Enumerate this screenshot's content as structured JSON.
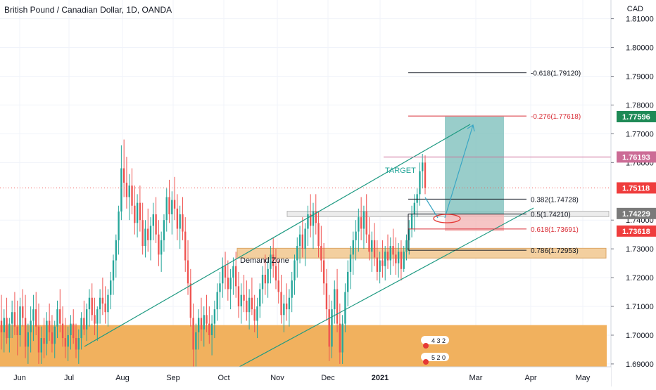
{
  "header": {
    "title": "British Pound / Canadian Dollar, 1D, OANDA",
    "currency": "CAD"
  },
  "chart_data": {
    "type": "candlestick",
    "ylim": [
      1.689,
      1.8165
    ],
    "y_ticks": [
      "1.81000",
      "1.80000",
      "1.79000",
      "1.78000",
      "1.77000",
      "1.76000",
      "1.74000",
      "1.73000",
      "1.72000",
      "1.71000",
      "1.70000",
      "1.69000"
    ],
    "x_tick_labels": [
      "Jun",
      "Jul",
      "Aug",
      "Sep",
      "Oct",
      "Nov",
      "Dec",
      "2021",
      "Mar",
      "Apr",
      "May"
    ],
    "price_tags": [
      {
        "label": "1.77596",
        "value": 1.77596,
        "color": "#1e8a56"
      },
      {
        "label": "1.76193",
        "value": 1.76193,
        "color": "#cc6c96"
      },
      {
        "label": "1.75118",
        "value": 1.75118,
        "color": "#ef3d3d"
      },
      {
        "label": "1.74229",
        "value": 1.74229,
        "color": "#7a7a7a"
      },
      {
        "label": "1.73618",
        "value": 1.73618,
        "color": "#ef3d3d"
      }
    ],
    "fib_levels": [
      {
        "label": "-0.618(1.79120)",
        "value": 1.7912,
        "color": "#131722"
      },
      {
        "label": "-0.276(1.77618)",
        "value": 1.77618,
        "color": "#d9313a"
      },
      {
        "label": "0.382(1.74728)",
        "value": 1.74728,
        "color": "#131722"
      },
      {
        "label": "0.5(1.74210)",
        "value": 1.7421,
        "color": "#131722"
      },
      {
        "label": "0.618(1.73691)",
        "value": 1.73691,
        "color": "#d9313a"
      },
      {
        "label": "0.786(1.72953)",
        "value": 1.72953,
        "color": "#131722"
      }
    ],
    "annotations": {
      "demand_zone": "Demand Zone",
      "target": "TARGET",
      "small_badges": [
        "4 3 2",
        "5 2 0"
      ]
    },
    "zones": [
      {
        "name": "big-support",
        "y_from": 1.689,
        "y_to": 1.7035
      },
      {
        "name": "demand",
        "y_from": 1.7268,
        "y_to": 1.7302
      },
      {
        "name": "retest",
        "y_from": 1.7412,
        "y_to": 1.7431
      }
    ],
    "channel": {
      "upper": [
        [
          1.6972,
          1.7755
        ]
      ],
      "lower": [
        [
          1.689,
          1.7447
        ]
      ]
    },
    "position": {
      "entry": 1.7421,
      "target": 1.77596,
      "stop": 1.73618
    },
    "last_price": 1.75118,
    "series_colors": {
      "up": "#26a69a",
      "down": "#ef5350"
    },
    "candles": [
      {
        "o": 1.705,
        "h": 1.714,
        "l": 1.695,
        "c": 1.701
      },
      {
        "o": 1.701,
        "h": 1.709,
        "l": 1.694,
        "c": 1.706
      },
      {
        "o": 1.706,
        "h": 1.713,
        "l": 1.697,
        "c": 1.699
      },
      {
        "o": 1.699,
        "h": 1.706,
        "l": 1.694,
        "c": 1.704
      },
      {
        "o": 1.704,
        "h": 1.712,
        "l": 1.699,
        "c": 1.708
      },
      {
        "o": 1.708,
        "h": 1.715,
        "l": 1.7,
        "c": 1.703
      },
      {
        "o": 1.703,
        "h": 1.712,
        "l": 1.693,
        "c": 1.7
      },
      {
        "o": 1.7,
        "h": 1.713,
        "l": 1.696,
        "c": 1.71
      },
      {
        "o": 1.71,
        "h": 1.716,
        "l": 1.703,
        "c": 1.706
      },
      {
        "o": 1.706,
        "h": 1.714,
        "l": 1.692,
        "c": 1.696
      },
      {
        "o": 1.696,
        "h": 1.704,
        "l": 1.69,
        "c": 1.701
      },
      {
        "o": 1.701,
        "h": 1.71,
        "l": 1.694,
        "c": 1.705
      },
      {
        "o": 1.705,
        "h": 1.714,
        "l": 1.698,
        "c": 1.709
      },
      {
        "o": 1.709,
        "h": 1.715,
        "l": 1.7,
        "c": 1.703
      },
      {
        "o": 1.703,
        "h": 1.711,
        "l": 1.69,
        "c": 1.694
      },
      {
        "o": 1.694,
        "h": 1.703,
        "l": 1.69,
        "c": 1.699
      },
      {
        "o": 1.699,
        "h": 1.706,
        "l": 1.692,
        "c": 1.697
      },
      {
        "o": 1.697,
        "h": 1.708,
        "l": 1.693,
        "c": 1.705
      },
      {
        "o": 1.705,
        "h": 1.711,
        "l": 1.698,
        "c": 1.701
      },
      {
        "o": 1.701,
        "h": 1.707,
        "l": 1.694,
        "c": 1.697
      },
      {
        "o": 1.697,
        "h": 1.705,
        "l": 1.692,
        "c": 1.703
      },
      {
        "o": 1.703,
        "h": 1.712,
        "l": 1.699,
        "c": 1.709
      },
      {
        "o": 1.709,
        "h": 1.716,
        "l": 1.701,
        "c": 1.704
      },
      {
        "o": 1.704,
        "h": 1.71,
        "l": 1.696,
        "c": 1.699
      },
      {
        "o": 1.699,
        "h": 1.706,
        "l": 1.692,
        "c": 1.696
      },
      {
        "o": 1.696,
        "h": 1.703,
        "l": 1.691,
        "c": 1.7
      },
      {
        "o": 1.7,
        "h": 1.707,
        "l": 1.695,
        "c": 1.704
      },
      {
        "o": 1.704,
        "h": 1.709,
        "l": 1.697,
        "c": 1.699
      },
      {
        "o": 1.699,
        "h": 1.704,
        "l": 1.692,
        "c": 1.695
      },
      {
        "o": 1.695,
        "h": 1.702,
        "l": 1.69,
        "c": 1.699
      },
      {
        "o": 1.699,
        "h": 1.708,
        "l": 1.695,
        "c": 1.706
      },
      {
        "o": 1.706,
        "h": 1.712,
        "l": 1.7,
        "c": 1.702
      },
      {
        "o": 1.702,
        "h": 1.711,
        "l": 1.698,
        "c": 1.709
      },
      {
        "o": 1.709,
        "h": 1.716,
        "l": 1.703,
        "c": 1.713
      },
      {
        "o": 1.713,
        "h": 1.718,
        "l": 1.705,
        "c": 1.707
      },
      {
        "o": 1.707,
        "h": 1.713,
        "l": 1.7,
        "c": 1.704
      },
      {
        "o": 1.704,
        "h": 1.71,
        "l": 1.698,
        "c": 1.709
      },
      {
        "o": 1.709,
        "h": 1.716,
        "l": 1.704,
        "c": 1.713
      },
      {
        "o": 1.713,
        "h": 1.72,
        "l": 1.707,
        "c": 1.711
      },
      {
        "o": 1.711,
        "h": 1.717,
        "l": 1.704,
        "c": 1.708
      },
      {
        "o": 1.708,
        "h": 1.716,
        "l": 1.703,
        "c": 1.714
      },
      {
        "o": 1.714,
        "h": 1.722,
        "l": 1.709,
        "c": 1.719
      },
      {
        "o": 1.719,
        "h": 1.728,
        "l": 1.714,
        "c": 1.726
      },
      {
        "o": 1.726,
        "h": 1.735,
        "l": 1.72,
        "c": 1.733
      },
      {
        "o": 1.733,
        "h": 1.745,
        "l": 1.728,
        "c": 1.743
      },
      {
        "o": 1.743,
        "h": 1.766,
        "l": 1.74,
        "c": 1.758
      },
      {
        "o": 1.758,
        "h": 1.768,
        "l": 1.748,
        "c": 1.753
      },
      {
        "o": 1.753,
        "h": 1.762,
        "l": 1.744,
        "c": 1.748
      },
      {
        "o": 1.748,
        "h": 1.756,
        "l": 1.74,
        "c": 1.752
      },
      {
        "o": 1.752,
        "h": 1.758,
        "l": 1.742,
        "c": 1.745
      },
      {
        "o": 1.745,
        "h": 1.752,
        "l": 1.735,
        "c": 1.739
      },
      {
        "o": 1.739,
        "h": 1.749,
        "l": 1.734,
        "c": 1.746
      },
      {
        "o": 1.746,
        "h": 1.752,
        "l": 1.736,
        "c": 1.74
      },
      {
        "o": 1.74,
        "h": 1.746,
        "l": 1.728,
        "c": 1.731
      },
      {
        "o": 1.731,
        "h": 1.74,
        "l": 1.727,
        "c": 1.737
      },
      {
        "o": 1.737,
        "h": 1.744,
        "l": 1.729,
        "c": 1.733
      },
      {
        "o": 1.733,
        "h": 1.741,
        "l": 1.726,
        "c": 1.738
      },
      {
        "o": 1.738,
        "h": 1.746,
        "l": 1.733,
        "c": 1.742
      },
      {
        "o": 1.742,
        "h": 1.748,
        "l": 1.732,
        "c": 1.735
      },
      {
        "o": 1.735,
        "h": 1.74,
        "l": 1.724,
        "c": 1.728
      },
      {
        "o": 1.728,
        "h": 1.736,
        "l": 1.722,
        "c": 1.733
      },
      {
        "o": 1.733,
        "h": 1.742,
        "l": 1.729,
        "c": 1.74
      },
      {
        "o": 1.74,
        "h": 1.751,
        "l": 1.736,
        "c": 1.748
      },
      {
        "o": 1.748,
        "h": 1.754,
        "l": 1.739,
        "c": 1.742
      },
      {
        "o": 1.742,
        "h": 1.75,
        "l": 1.735,
        "c": 1.747
      },
      {
        "o": 1.747,
        "h": 1.755,
        "l": 1.74,
        "c": 1.744
      },
      {
        "o": 1.744,
        "h": 1.749,
        "l": 1.733,
        "c": 1.737
      },
      {
        "o": 1.737,
        "h": 1.745,
        "l": 1.73,
        "c": 1.742
      },
      {
        "o": 1.742,
        "h": 1.748,
        "l": 1.733,
        "c": 1.736
      },
      {
        "o": 1.736,
        "h": 1.741,
        "l": 1.722,
        "c": 1.726
      },
      {
        "o": 1.726,
        "h": 1.733,
        "l": 1.714,
        "c": 1.718
      },
      {
        "o": 1.718,
        "h": 1.723,
        "l": 1.703,
        "c": 1.706
      },
      {
        "o": 1.706,
        "h": 1.711,
        "l": 1.689,
        "c": 1.695
      },
      {
        "o": 1.695,
        "h": 1.704,
        "l": 1.689,
        "c": 1.701
      },
      {
        "o": 1.701,
        "h": 1.709,
        "l": 1.695,
        "c": 1.706
      },
      {
        "o": 1.706,
        "h": 1.713,
        "l": 1.698,
        "c": 1.702
      },
      {
        "o": 1.702,
        "h": 1.71,
        "l": 1.696,
        "c": 1.707
      },
      {
        "o": 1.707,
        "h": 1.714,
        "l": 1.701,
        "c": 1.704
      },
      {
        "o": 1.704,
        "h": 1.71,
        "l": 1.697,
        "c": 1.7
      },
      {
        "o": 1.7,
        "h": 1.707,
        "l": 1.693,
        "c": 1.704
      },
      {
        "o": 1.704,
        "h": 1.712,
        "l": 1.699,
        "c": 1.709
      },
      {
        "o": 1.709,
        "h": 1.718,
        "l": 1.705,
        "c": 1.715
      },
      {
        "o": 1.715,
        "h": 1.722,
        "l": 1.709,
        "c": 1.718
      },
      {
        "o": 1.718,
        "h": 1.727,
        "l": 1.713,
        "c": 1.724
      },
      {
        "o": 1.724,
        "h": 1.729,
        "l": 1.716,
        "c": 1.72
      },
      {
        "o": 1.72,
        "h": 1.726,
        "l": 1.712,
        "c": 1.716
      },
      {
        "o": 1.716,
        "h": 1.723,
        "l": 1.709,
        "c": 1.72
      },
      {
        "o": 1.72,
        "h": 1.727,
        "l": 1.714,
        "c": 1.724
      },
      {
        "o": 1.724,
        "h": 1.729,
        "l": 1.713,
        "c": 1.717
      },
      {
        "o": 1.717,
        "h": 1.722,
        "l": 1.706,
        "c": 1.71
      },
      {
        "o": 1.71,
        "h": 1.718,
        "l": 1.704,
        "c": 1.714
      },
      {
        "o": 1.714,
        "h": 1.721,
        "l": 1.708,
        "c": 1.712
      },
      {
        "o": 1.712,
        "h": 1.719,
        "l": 1.705,
        "c": 1.708
      },
      {
        "o": 1.708,
        "h": 1.716,
        "l": 1.702,
        "c": 1.713
      },
      {
        "o": 1.713,
        "h": 1.72,
        "l": 1.707,
        "c": 1.709
      },
      {
        "o": 1.709,
        "h": 1.714,
        "l": 1.701,
        "c": 1.705
      },
      {
        "o": 1.705,
        "h": 1.713,
        "l": 1.699,
        "c": 1.71
      },
      {
        "o": 1.71,
        "h": 1.718,
        "l": 1.706,
        "c": 1.716
      },
      {
        "o": 1.716,
        "h": 1.724,
        "l": 1.711,
        "c": 1.721
      },
      {
        "o": 1.721,
        "h": 1.728,
        "l": 1.714,
        "c": 1.718
      },
      {
        "o": 1.718,
        "h": 1.726,
        "l": 1.713,
        "c": 1.723
      },
      {
        "o": 1.723,
        "h": 1.731,
        "l": 1.718,
        "c": 1.728
      },
      {
        "o": 1.728,
        "h": 1.734,
        "l": 1.72,
        "c": 1.724
      },
      {
        "o": 1.724,
        "h": 1.73,
        "l": 1.716,
        "c": 1.719
      },
      {
        "o": 1.719,
        "h": 1.726,
        "l": 1.711,
        "c": 1.715
      },
      {
        "o": 1.715,
        "h": 1.721,
        "l": 1.704,
        "c": 1.707
      },
      {
        "o": 1.707,
        "h": 1.714,
        "l": 1.701,
        "c": 1.711
      },
      {
        "o": 1.711,
        "h": 1.718,
        "l": 1.705,
        "c": 1.709
      },
      {
        "o": 1.709,
        "h": 1.716,
        "l": 1.703,
        "c": 1.713
      },
      {
        "o": 1.713,
        "h": 1.722,
        "l": 1.708,
        "c": 1.719
      },
      {
        "o": 1.719,
        "h": 1.728,
        "l": 1.714,
        "c": 1.726
      },
      {
        "o": 1.726,
        "h": 1.734,
        "l": 1.72,
        "c": 1.731
      },
      {
        "o": 1.731,
        "h": 1.738,
        "l": 1.725,
        "c": 1.735
      },
      {
        "o": 1.735,
        "h": 1.741,
        "l": 1.727,
        "c": 1.73
      },
      {
        "o": 1.73,
        "h": 1.739,
        "l": 1.724,
        "c": 1.737
      },
      {
        "o": 1.737,
        "h": 1.745,
        "l": 1.731,
        "c": 1.742
      },
      {
        "o": 1.742,
        "h": 1.749,
        "l": 1.734,
        "c": 1.738
      },
      {
        "o": 1.738,
        "h": 1.746,
        "l": 1.73,
        "c": 1.743
      },
      {
        "o": 1.743,
        "h": 1.749,
        "l": 1.735,
        "c": 1.739
      },
      {
        "o": 1.739,
        "h": 1.743,
        "l": 1.727,
        "c": 1.731
      },
      {
        "o": 1.731,
        "h": 1.738,
        "l": 1.722,
        "c": 1.726
      },
      {
        "o": 1.726,
        "h": 1.732,
        "l": 1.714,
        "c": 1.718
      },
      {
        "o": 1.718,
        "h": 1.723,
        "l": 1.705,
        "c": 1.709
      },
      {
        "o": 1.709,
        "h": 1.714,
        "l": 1.691,
        "c": 1.696
      },
      {
        "o": 1.696,
        "h": 1.712,
        "l": 1.692,
        "c": 1.709
      },
      {
        "o": 1.709,
        "h": 1.719,
        "l": 1.704,
        "c": 1.716
      },
      {
        "o": 1.716,
        "h": 1.723,
        "l": 1.701,
        "c": 1.704
      },
      {
        "o": 1.704,
        "h": 1.711,
        "l": 1.69,
        "c": 1.694
      },
      {
        "o": 1.694,
        "h": 1.707,
        "l": 1.69,
        "c": 1.704
      },
      {
        "o": 1.704,
        "h": 1.718,
        "l": 1.701,
        "c": 1.715
      },
      {
        "o": 1.715,
        "h": 1.726,
        "l": 1.71,
        "c": 1.722
      },
      {
        "o": 1.722,
        "h": 1.731,
        "l": 1.716,
        "c": 1.728
      },
      {
        "o": 1.728,
        "h": 1.736,
        "l": 1.721,
        "c": 1.733
      },
      {
        "o": 1.733,
        "h": 1.74,
        "l": 1.726,
        "c": 1.736
      },
      {
        "o": 1.736,
        "h": 1.744,
        "l": 1.729,
        "c": 1.741
      },
      {
        "o": 1.741,
        "h": 1.748,
        "l": 1.733,
        "c": 1.737
      },
      {
        "o": 1.737,
        "h": 1.745,
        "l": 1.73,
        "c": 1.743
      },
      {
        "o": 1.743,
        "h": 1.749,
        "l": 1.732,
        "c": 1.735
      },
      {
        "o": 1.735,
        "h": 1.741,
        "l": 1.726,
        "c": 1.729
      },
      {
        "o": 1.729,
        "h": 1.736,
        "l": 1.722,
        "c": 1.733
      },
      {
        "o": 1.733,
        "h": 1.739,
        "l": 1.724,
        "c": 1.727
      },
      {
        "o": 1.727,
        "h": 1.733,
        "l": 1.719,
        "c": 1.722
      },
      {
        "o": 1.722,
        "h": 1.729,
        "l": 1.718,
        "c": 1.726
      },
      {
        "o": 1.726,
        "h": 1.733,
        "l": 1.72,
        "c": 1.724
      },
      {
        "o": 1.724,
        "h": 1.731,
        "l": 1.719,
        "c": 1.729
      },
      {
        "o": 1.729,
        "h": 1.735,
        "l": 1.723,
        "c": 1.726
      },
      {
        "o": 1.726,
        "h": 1.734,
        "l": 1.721,
        "c": 1.731
      },
      {
        "o": 1.731,
        "h": 1.737,
        "l": 1.724,
        "c": 1.728
      },
      {
        "o": 1.728,
        "h": 1.734,
        "l": 1.721,
        "c": 1.725
      },
      {
        "o": 1.725,
        "h": 1.732,
        "l": 1.72,
        "c": 1.729
      },
      {
        "o": 1.729,
        "h": 1.733,
        "l": 1.719,
        "c": 1.723
      },
      {
        "o": 1.723,
        "h": 1.731,
        "l": 1.722,
        "c": 1.729
      },
      {
        "o": 1.729,
        "h": 1.735,
        "l": 1.726,
        "c": 1.733
      },
      {
        "o": 1.733,
        "h": 1.74,
        "l": 1.728,
        "c": 1.737
      },
      {
        "o": 1.737,
        "h": 1.745,
        "l": 1.734,
        "c": 1.742
      },
      {
        "o": 1.742,
        "h": 1.749,
        "l": 1.736,
        "c": 1.746
      },
      {
        "o": 1.746,
        "h": 1.751,
        "l": 1.741,
        "c": 1.749
      },
      {
        "o": 1.749,
        "h": 1.76,
        "l": 1.745,
        "c": 1.757
      },
      {
        "o": 1.757,
        "h": 1.763,
        "l": 1.751,
        "c": 1.76
      },
      {
        "o": 1.76,
        "h": 1.7625,
        "l": 1.749,
        "c": 1.7512
      }
    ]
  }
}
